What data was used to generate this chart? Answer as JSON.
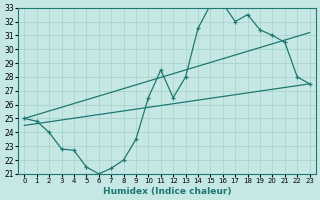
{
  "xlabel": "Humidex (Indice chaleur)",
  "xlim": [
    -0.5,
    23.5
  ],
  "ylim": [
    21,
    33
  ],
  "yticks": [
    21,
    22,
    23,
    24,
    25,
    26,
    27,
    28,
    29,
    30,
    31,
    32,
    33
  ],
  "xticks": [
    0,
    1,
    2,
    3,
    4,
    5,
    6,
    7,
    8,
    9,
    10,
    11,
    12,
    13,
    14,
    15,
    16,
    17,
    18,
    19,
    20,
    21,
    22,
    23
  ],
  "bg_color": "#c5e8e5",
  "line_color": "#1e7872",
  "grid_color": "#aad4ce",
  "main_x": [
    0,
    1,
    2,
    3,
    4,
    5,
    6,
    7,
    8,
    9,
    10,
    11,
    12,
    13,
    14,
    15,
    16,
    17,
    18,
    19,
    20,
    21,
    22,
    23
  ],
  "main_y": [
    25.0,
    24.8,
    24.0,
    22.8,
    22.7,
    21.5,
    21.0,
    21.4,
    22.0,
    23.5,
    26.5,
    28.5,
    26.5,
    28.0,
    31.5,
    33.2,
    33.3,
    32.0,
    32.5,
    31.4,
    31.0,
    30.5,
    28.0,
    27.5
  ],
  "upper_line_x": [
    0,
    23
  ],
  "upper_line_y": [
    25.0,
    31.2
  ],
  "lower_line_x": [
    0,
    23
  ],
  "lower_line_y": [
    24.5,
    27.5
  ]
}
